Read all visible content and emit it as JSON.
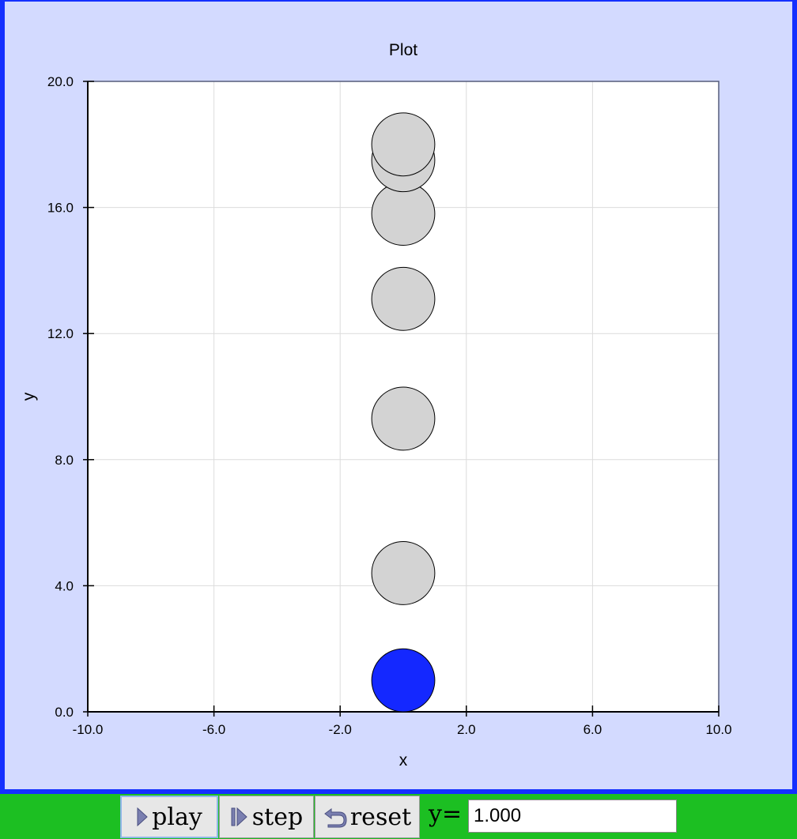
{
  "chart_data": {
    "type": "scatter",
    "title": "Plot",
    "xlabel": "x",
    "ylabel": "y",
    "xlim": [
      -10,
      10
    ],
    "ylim": [
      0,
      20
    ],
    "x_ticks": [
      "-10.0",
      "-6.0",
      "-2.0",
      "2.0",
      "6.0",
      "10.0"
    ],
    "y_ticks": [
      "0.0",
      "4.0",
      "8.0",
      "12.0",
      "16.0",
      "20.0"
    ],
    "grid": true,
    "trail_points": [
      {
        "x": 0,
        "y": 4.4
      },
      {
        "x": 0,
        "y": 9.3
      },
      {
        "x": 0,
        "y": 13.1
      },
      {
        "x": 0,
        "y": 15.8
      },
      {
        "x": 0,
        "y": 17.5
      },
      {
        "x": 0,
        "y": 18.0
      }
    ],
    "current_point": {
      "x": 0,
      "y": 1.0
    },
    "point_radius": 1.0,
    "trail_color": "#d3d3d3",
    "current_color": "#1428ff"
  },
  "controls": {
    "play_label": "play",
    "step_label": "step",
    "reset_label": "reset",
    "y_label": "y=",
    "y_value": "1.000"
  },
  "colors": {
    "panel_border": "#1430ff",
    "panel_background": "#d3daff",
    "control_bar": "#1cbf22"
  }
}
